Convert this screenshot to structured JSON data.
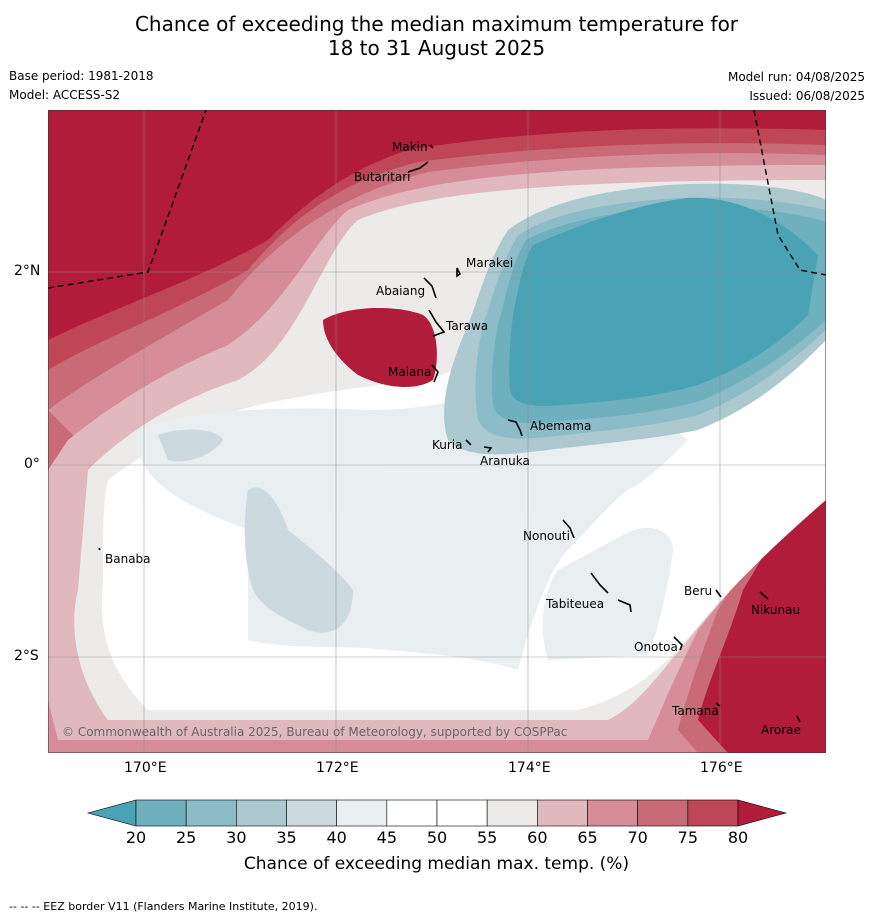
{
  "title": {
    "line1": "Chance of exceeding the median maximum temperature for",
    "line2": "18 to 31 August 2025"
  },
  "meta": {
    "base_period": "Base period: 1981-2018",
    "model": "Model: ACCESS-S2",
    "model_run": "Model run: 04/08/2025",
    "issued": "Issued: 06/08/2025"
  },
  "map": {
    "lon_ticks": [
      "170°E",
      "172°E",
      "174°E",
      "176°E"
    ],
    "lat_ticks": [
      "2°N",
      "0°",
      "2°S"
    ],
    "copyright": "© Commonwealth of Australia 2025, Bureau of Meteorology, supported by COSPPac",
    "places": [
      {
        "name": "Makin"
      },
      {
        "name": "Butaritari"
      },
      {
        "name": "Marakei"
      },
      {
        "name": "Abaiang"
      },
      {
        "name": "Tarawa"
      },
      {
        "name": "Maiana"
      },
      {
        "name": "Abemama"
      },
      {
        "name": "Kuria"
      },
      {
        "name": "Aranuka"
      },
      {
        "name": "Banaba"
      },
      {
        "name": "Nonouti"
      },
      {
        "name": "Tabiteuea"
      },
      {
        "name": "Beru"
      },
      {
        "name": "Nikunau"
      },
      {
        "name": "Onotoa"
      },
      {
        "name": "Tamana"
      },
      {
        "name": "Arorae"
      }
    ]
  },
  "colorbar": {
    "label": "Chance of exceeding median max. temp. (%)",
    "ticks": [
      "20",
      "25",
      "30",
      "35",
      "40",
      "45",
      "50",
      "55",
      "60",
      "65",
      "70",
      "75",
      "80"
    ],
    "colors": [
      "#4aa3b4",
      "#6fb0bf",
      "#8cbcc8",
      "#adc9d0",
      "#ccdadf",
      "#e9eff1",
      "#ffffff",
      "#ffffff",
      "#ecebea",
      "#e2b8bf",
      "#d68d98",
      "#c96a77",
      "#bf4656",
      "#b01c39"
    ]
  },
  "footer": "--  --  -- EEZ border V11 (Flanders Marine Institute, 2019)."
}
